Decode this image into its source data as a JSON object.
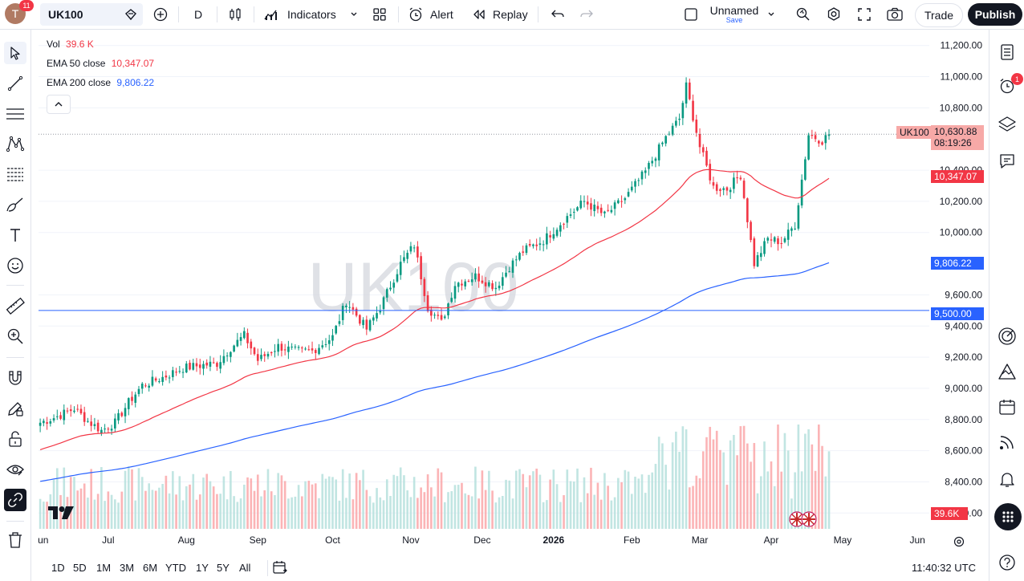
{
  "header": {
    "avatar_letter": "T",
    "notification_count": "11",
    "symbol": "UK100",
    "interval": "D",
    "indicators_label": "Indicators",
    "alert_label": "Alert",
    "replay_label": "Replay",
    "layout_name": "Unnamed",
    "layout_save": "Save",
    "trade_label": "Trade",
    "publish_label": "Publish"
  },
  "legend": {
    "vol_label": "Vol",
    "vol_value": "39.6 K",
    "ema50_label": "EMA 50 close",
    "ema50_value": "10,347.07",
    "ema200_label": "EMA 200 close",
    "ema200_value": "9,806.22",
    "collapse_icon": "chevron-up-icon"
  },
  "watermark": "UK100",
  "price_badges": {
    "symbol": "UK100",
    "last_price": "10,630.88",
    "countdown": "08:19:26",
    "ema50": "10,347.07",
    "ema200": "9,806.22",
    "hline": "9,500.00",
    "volume": "39.6K"
  },
  "bottom": {
    "ranges": [
      "1D",
      "5D",
      "1M",
      "3M",
      "6M",
      "YTD",
      "1Y",
      "5Y",
      "All"
    ],
    "clock": "11:40:32 UTC"
  },
  "right_panel": {
    "alert_count": "1"
  },
  "colors": {
    "up": "#089981",
    "down": "#f23645",
    "ema50": "#f23645",
    "ema200": "#2962ff",
    "hline": "#2962ff",
    "vol_up": "#b2dfdb",
    "vol_down": "#faa1a4"
  },
  "chart_data": {
    "type": "candlestick",
    "y_axis_ticks": [
      "11,200.00",
      "11,000.00",
      "10,800.00",
      "10,400.00",
      "10,200.00",
      "10,000.00",
      "9,600.00",
      "9,400.00",
      "9,200.00",
      "9,000.00",
      "8,800.00",
      "8,600.00",
      "8,400.00",
      "8,200.00"
    ],
    "y_tick_values": [
      11200,
      11000,
      10800,
      10400,
      10200,
      10000,
      9600,
      9400,
      9200,
      9000,
      8800,
      8600,
      8400,
      8200
    ],
    "ylim": [
      8150,
      11250
    ],
    "x_axis_labels": [
      {
        "label": "un",
        "index": 0
      },
      {
        "label": "Jul",
        "index": 20
      },
      {
        "label": "Aug",
        "index": 43
      },
      {
        "label": "Sep",
        "index": 64
      },
      {
        "label": "Oct",
        "index": 86
      },
      {
        "label": "Nov",
        "index": 109
      },
      {
        "label": "Dec",
        "index": 130
      },
      {
        "label": "2026",
        "index": 151
      },
      {
        "label": "Feb",
        "index": 174
      },
      {
        "label": "Mar",
        "index": 194
      },
      {
        "label": "Apr",
        "index": 215
      },
      {
        "label": "May",
        "index": 236
      },
      {
        "label": "Jun",
        "index": 258
      }
    ],
    "n_slots": 262,
    "keypoints": [
      [
        0,
        8780
      ],
      [
        5,
        8820
      ],
      [
        10,
        8870
      ],
      [
        14,
        8790
      ],
      [
        18,
        8730
      ],
      [
        22,
        8780
      ],
      [
        26,
        8910
      ],
      [
        30,
        9020
      ],
      [
        36,
        9070
      ],
      [
        42,
        9130
      ],
      [
        48,
        9150
      ],
      [
        52,
        9160
      ],
      [
        56,
        9260
      ],
      [
        60,
        9340
      ],
      [
        64,
        9180
      ],
      [
        70,
        9270
      ],
      [
        75,
        9240
      ],
      [
        80,
        9240
      ],
      [
        86,
        9330
      ],
      [
        90,
        9560
      ],
      [
        96,
        9380
      ],
      [
        100,
        9520
      ],
      [
        106,
        9800
      ],
      [
        110,
        9920
      ],
      [
        114,
        9520
      ],
      [
        118,
        9420
      ],
      [
        122,
        9670
      ],
      [
        128,
        9720
      ],
      [
        134,
        9650
      ],
      [
        138,
        9780
      ],
      [
        142,
        9880
      ],
      [
        148,
        9950
      ],
      [
        154,
        10080
      ],
      [
        160,
        10200
      ],
      [
        166,
        10110
      ],
      [
        172,
        10220
      ],
      [
        178,
        10390
      ],
      [
        184,
        10610
      ],
      [
        188,
        10730
      ],
      [
        190,
        10940
      ],
      [
        194,
        10550
      ],
      [
        198,
        10290
      ],
      [
        202,
        10280
      ],
      [
        206,
        10370
      ],
      [
        210,
        9800
      ],
      [
        214,
        9960
      ],
      [
        218,
        9940
      ],
      [
        222,
        10050
      ],
      [
        226,
        10630
      ],
      [
        230,
        10590
      ],
      [
        232,
        10631
      ]
    ],
    "ema50_last": 10347.07,
    "ema200_last": 9806.22,
    "horizontal_line": 9500,
    "volume_last": "39.6K"
  }
}
